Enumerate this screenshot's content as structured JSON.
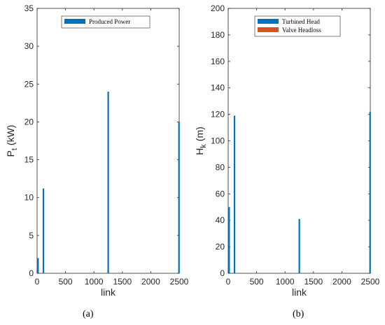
{
  "chart_data": [
    {
      "id": "a",
      "caption": "(a)",
      "type": "bar",
      "xlabel": "link",
      "ylabel_main": "P",
      "ylabel_sub": "t",
      "ylabel_unit": "(kW)",
      "xlim": [
        0,
        2500
      ],
      "ylim": [
        0,
        35
      ],
      "xticks": [
        0,
        500,
        1000,
        1500,
        2000,
        2500
      ],
      "yticks": [
        0,
        5,
        10,
        15,
        20,
        25,
        30,
        35
      ],
      "legend": {
        "placement": "top-center"
      },
      "series": [
        {
          "name": "Produced Power",
          "color": "#0072BD",
          "x": [
            15,
            110,
            1250,
            2495
          ],
          "values": [
            2,
            11.2,
            24,
            20
          ]
        }
      ]
    },
    {
      "id": "b",
      "caption": "(b)",
      "type": "bar",
      "xlabel": "link",
      "ylabel_main": "H",
      "ylabel_sub": "k",
      "ylabel_unit": "(m)",
      "xlim": [
        0,
        2500
      ],
      "ylim": [
        0,
        200
      ],
      "xticks": [
        0,
        500,
        1000,
        1500,
        2000,
        2500
      ],
      "yticks": [
        0,
        20,
        40,
        60,
        80,
        100,
        120,
        140,
        160,
        180,
        200
      ],
      "legend": {
        "placement": "top-right"
      },
      "series": [
        {
          "name": "Turbined Head",
          "color": "#0072BD",
          "x": [
            15,
            110,
            1250,
            2495
          ],
          "values": [
            50,
            119,
            41,
            122
          ]
        },
        {
          "name": "Valve Headloss",
          "color": "#D95319",
          "x": [],
          "values": []
        }
      ]
    }
  ]
}
